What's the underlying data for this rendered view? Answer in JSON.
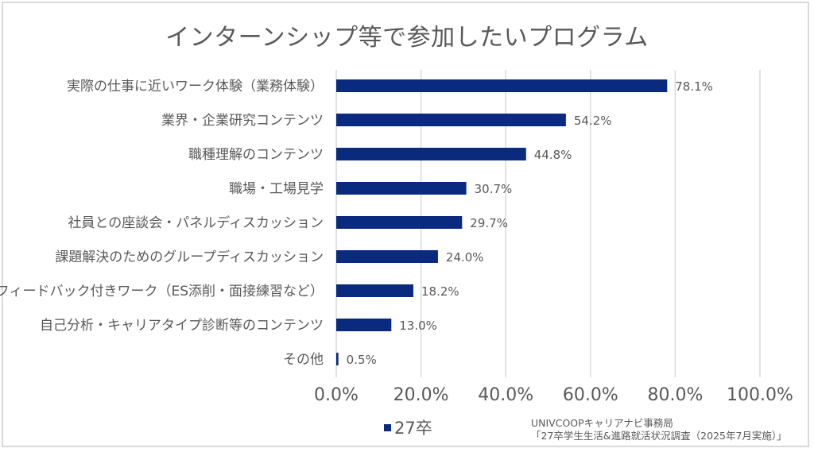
{
  "chart_data": {
    "type": "bar",
    "orientation": "horizontal",
    "title": "インターンシップ等で参加したいプログラム",
    "categories": [
      "実際の仕事に近いワーク体験（業務体験）",
      "業界・企業研究コンテンツ",
      "職種理解のコンテンツ",
      "職場・工場見学",
      "社員との座談会・パネルディスカッション",
      "課題解決のためのグループディスカッション",
      "フィードバック付きワーク（ES添削・面接練習など）",
      "自己分析・キャリアタイプ診断等のコンテンツ",
      "その他"
    ],
    "series": [
      {
        "name": "27卒",
        "color": "#0a2a7f",
        "values": [
          78.1,
          54.2,
          44.8,
          30.7,
          29.7,
          24.0,
          18.2,
          13.0,
          0.5
        ],
        "labels": [
          "78.1%",
          "54.2%",
          "44.8%",
          "30.7%",
          "29.7%",
          "24.0%",
          "18.2%",
          "13.0%",
          "0.5%"
        ]
      }
    ],
    "xlim": [
      0,
      100
    ],
    "xticks": [
      0,
      20,
      40,
      60,
      80,
      100
    ],
    "xtick_labels": [
      "0.0%",
      "20.0%",
      "40.0%",
      "60.0%",
      "80.0%",
      "100.0%"
    ],
    "xlabel": "",
    "ylabel": "",
    "grid": "vertical",
    "legend_position": "bottom",
    "grid_color": "#d9d9d9",
    "text_color": "#595959"
  },
  "legend": {
    "label": "27卒"
  },
  "source": {
    "line1": "UNIVCOOPキャリアナビ事務局",
    "line2": "「27卒学生生活&進路就活状況調査（2025年7月実施）」"
  }
}
